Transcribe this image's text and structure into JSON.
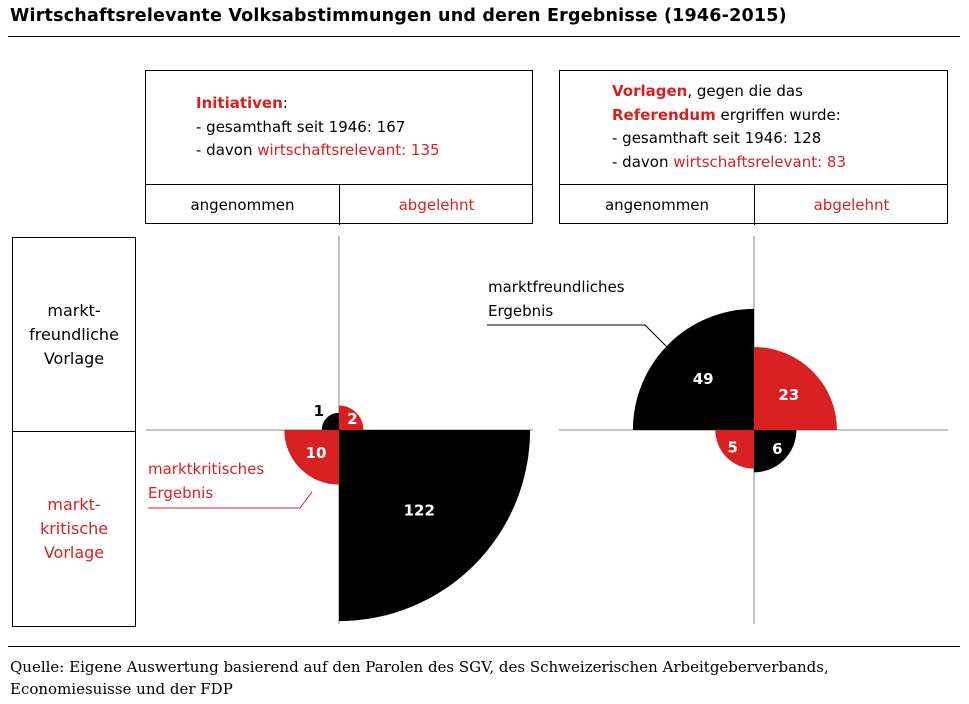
{
  "title": "Wirtschaftsrelevante Volksabstimmungen und deren Ergebnisse (1946-2015)",
  "initiatives_box": {
    "heading": "Initiativen",
    "heading_suffix": ":",
    "line1": "- gesamthaft seit 1946: 167",
    "line2_prefix": "- davon ",
    "line2_red": "wirtschaftsrelevant: 135",
    "col_accepted": "angenommen",
    "col_rejected": "abgelehnt"
  },
  "referendum_box": {
    "heading1": "Vorlagen",
    "heading1_suffix": ", gegen die das",
    "heading2": "Referendum",
    "heading2_suffix": " ergriffen wurde:",
    "line1": "- gesamthaft seit 1946: 128",
    "line2_prefix": "- davon ",
    "line2_red": "wirtschaftsrelevant: 83",
    "col_accepted": "angenommen",
    "col_rejected": "abgelehnt"
  },
  "row_labels": {
    "market_friendly": "markt-\nfreundliche\nVorlage",
    "market_critical": "markt-\nkritische\nVorlage"
  },
  "annotations": {
    "market_friendly_result": "marktfreundliches\nErgebnis",
    "market_critical_result": "marktkritisches\nErgebnis"
  },
  "colors": {
    "red": "#d92020",
    "black": "#000000"
  },
  "chart_data": [
    {
      "type": "pie",
      "name": "Initiativen",
      "encoding": "quarter-circle area proportional to count",
      "quadrants": [
        {
          "row": "marktfreundliche Vorlage",
          "col": "angenommen",
          "value": 1,
          "color": "black",
          "result": "marktfreundliches Ergebnis"
        },
        {
          "row": "marktfreundliche Vorlage",
          "col": "abgelehnt",
          "value": 2,
          "color": "red",
          "result": "marktkritisches Ergebnis"
        },
        {
          "row": "marktkritische Vorlage",
          "col": "angenommen",
          "value": 10,
          "color": "red",
          "result": "marktkritisches Ergebnis"
        },
        {
          "row": "marktkritische Vorlage",
          "col": "abgelehnt",
          "value": 122,
          "color": "black",
          "result": "marktfreundliches Ergebnis"
        }
      ]
    },
    {
      "type": "pie",
      "name": "Referendum",
      "encoding": "quarter-circle area proportional to count",
      "quadrants": [
        {
          "row": "marktfreundliche Vorlage",
          "col": "angenommen",
          "value": 49,
          "color": "black",
          "result": "marktfreundliches Ergebnis"
        },
        {
          "row": "marktfreundliche Vorlage",
          "col": "abgelehnt",
          "value": 23,
          "color": "red",
          "result": "marktkritisches Ergebnis"
        },
        {
          "row": "marktkritische Vorlage",
          "col": "angenommen",
          "value": 5,
          "color": "red",
          "result": "marktkritisches Ergebnis"
        },
        {
          "row": "marktkritische Vorlage",
          "col": "abgelehnt",
          "value": 6,
          "color": "black",
          "result": "marktfreundliches Ergebnis"
        }
      ]
    }
  ],
  "source": {
    "line1": "Quelle: Eigene Auswertung basierend auf den Parolen des SGV, des Schweizerischen Arbeitgeberverbands,",
    "line2": "Economiesuisse und der FDP"
  }
}
